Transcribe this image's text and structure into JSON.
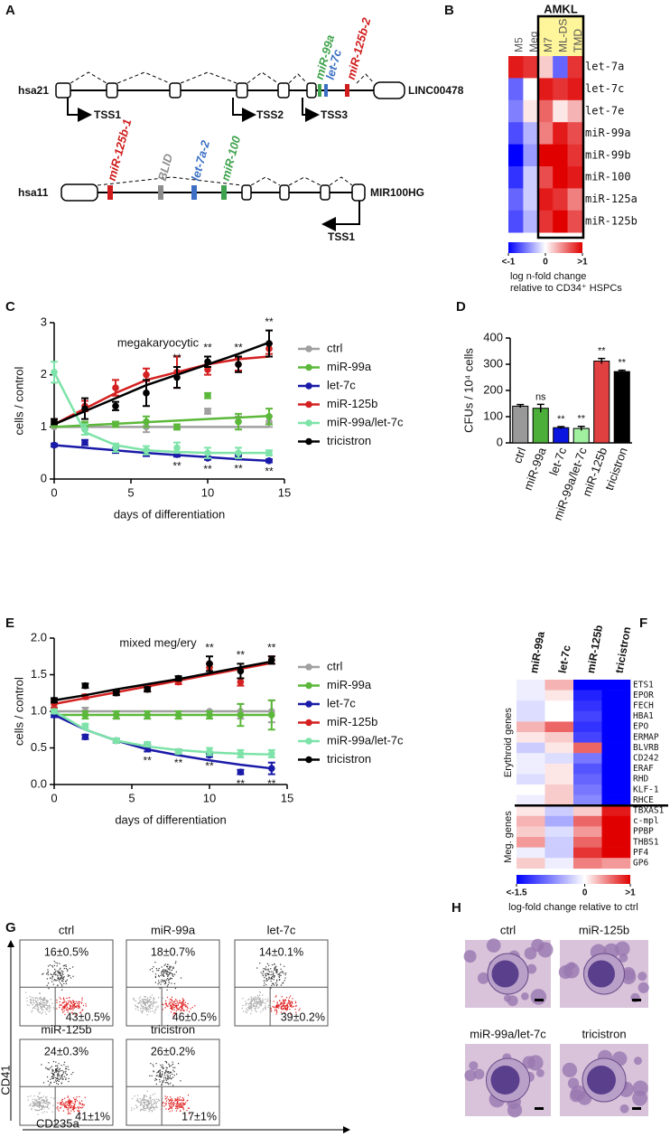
{
  "panel_labels": [
    "A",
    "B",
    "C",
    "D",
    "E",
    "F",
    "G",
    "H"
  ],
  "gene_map": {
    "hsa21": {
      "chrom": "hsa21",
      "gene": "LINC00478",
      "tss": [
        "TSS1",
        "TSS2",
        "TSS3"
      ],
      "mirnas": [
        "miR-99a",
        "let-7c",
        "miR-125b-2"
      ]
    },
    "hsa11": {
      "chrom": "hsa11",
      "gene": "MIR100HG",
      "tss": [
        "TSS1"
      ],
      "mirnas": [
        "miR-125b-1",
        "BLID",
        "let-7a-2",
        "miR-100"
      ]
    }
  },
  "chart_data": [
    {
      "type": "heatmap",
      "group_label": "AMKL",
      "columns": [
        "M5",
        "Meg",
        "M7",
        "ML-DS",
        "TMD"
      ],
      "rows": [
        "let-7a",
        "let-7c",
        "let-7e",
        "miR-99a",
        "miR-99b",
        "miR-100",
        "miR-125a",
        "miR-125b"
      ],
      "values": [
        [
          0.9,
          0.8,
          0.2,
          -0.6,
          0.8
        ],
        [
          -0.6,
          0,
          0.9,
          0.8,
          0.9
        ],
        [
          -0.5,
          0.1,
          0.6,
          0.1,
          0.3
        ],
        [
          -0.7,
          -0.3,
          0.5,
          0.9,
          0.7
        ],
        [
          -1,
          -0.4,
          1,
          1,
          0.8
        ],
        [
          -0.8,
          -0.2,
          0.7,
          1,
          0.9
        ],
        [
          -0.6,
          -0.2,
          0.9,
          0.8,
          0.5
        ],
        [
          -0.7,
          -0.3,
          0.8,
          1,
          0.7
        ]
      ],
      "zlim": [
        -1,
        1
      ],
      "colors": [
        "#0000ff",
        "#ffffff",
        "#e00000"
      ],
      "colorbar_ticks": [
        {
          "value": -1,
          "label": "<-1"
        },
        0,
        {
          "value": 1,
          "label": ">1"
        }
      ],
      "colorbar_label": [
        "log n-fold change",
        "relative to CD34⁺ HSPCs"
      ]
    },
    {
      "type": "line",
      "title": "megakaryocytic",
      "xlabel": "days of differentiation",
      "ylabel": "cells / control",
      "x": [
        0,
        2,
        4,
        6,
        8,
        10,
        12,
        14
      ],
      "xlim": [
        0,
        15
      ],
      "xticks": [
        0,
        5,
        10,
        15
      ],
      "ylim": [
        0,
        3
      ],
      "yticks": [
        0,
        1,
        2,
        3
      ],
      "series": [
        {
          "name": "ctrl",
          "color": "#a0a0a0",
          "values": [
            1,
            1,
            1.05,
            1,
            1,
            1.3,
            1.1,
            1.1
          ],
          "errors": [
            0,
            0.05,
            0.05,
            0.1,
            0.05,
            0.05,
            0.1,
            0.1
          ],
          "fit": [
            1,
            1,
            1,
            1,
            1,
            1,
            1,
            1
          ]
        },
        {
          "name": "miR-99a",
          "color": "#5cb83a",
          "values": [
            1.05,
            1.05,
            1.05,
            1.1,
            1,
            1.6,
            1.1,
            1.2
          ],
          "errors": [
            0.05,
            0.05,
            0.05,
            0.1,
            0.05,
            0.05,
            0.15,
            0.15
          ],
          "fit": [
            1,
            1.03,
            1.06,
            1.09,
            1.12,
            1.15,
            1.18,
            1.21
          ]
        },
        {
          "name": "let-7c",
          "color": "#1a1aa8",
          "values": [
            0.65,
            0.7,
            0.55,
            0.5,
            0.47,
            0.4,
            0.42,
            0.35
          ],
          "errors": [
            0.03,
            0.05,
            0.05,
            0.06,
            0.04,
            0.03,
            0.04,
            0.03
          ],
          "fit": [
            0.65,
            0.6,
            0.55,
            0.5,
            0.46,
            0.42,
            0.38,
            0.35
          ],
          "sig": [
            null,
            null,
            null,
            null,
            "**",
            "**",
            "**",
            "**"
          ]
        },
        {
          "name": "miR-125b",
          "color": "#d42020",
          "values": [
            1.1,
            1.4,
            1.75,
            2,
            2.05,
            2.1,
            2.2,
            2.5
          ],
          "errors": [
            0.05,
            0.1,
            0.15,
            0.12,
            0.3,
            0.1,
            0.12,
            0.1
          ],
          "fit": [
            1.05,
            1.35,
            1.65,
            1.9,
            2.05,
            2.2,
            2.3,
            2.35
          ]
        },
        {
          "name": "miR-99a/let-7c",
          "color": "#7de3a8",
          "values": [
            2.05,
            0.95,
            0.6,
            0.55,
            0.6,
            0.5,
            0.5,
            0.5
          ],
          "errors": [
            0.2,
            0.1,
            0.08,
            0.08,
            0.1,
            0.1,
            0.1,
            0.05
          ],
          "fit": [
            2.05,
            0.9,
            0.65,
            0.55,
            0.52,
            0.5,
            0.5,
            0.5
          ]
        },
        {
          "name": "tricistron",
          "color": "#000000",
          "values": [
            1.1,
            1.35,
            1.4,
            1.65,
            1.95,
            2.25,
            2.2,
            2.6
          ],
          "errors": [
            0.05,
            0.2,
            0.08,
            0.25,
            0.2,
            0.1,
            0.15,
            0.25
          ],
          "fit": [
            1.05,
            1.3,
            1.55,
            1.8,
            2,
            2.2,
            2.4,
            2.62
          ],
          "sig": [
            null,
            null,
            null,
            null,
            "**",
            "**",
            "**",
            "**"
          ]
        }
      ]
    },
    {
      "type": "bar",
      "ylabel": "CFUs / 10⁴ cells",
      "categories": [
        "ctrl",
        "miR-99a",
        "let-7c",
        "miR-99a/let-7c",
        "miR-125b",
        "tricistron"
      ],
      "values": [
        140,
        132,
        58,
        55,
        312,
        272
      ],
      "errors": [
        6,
        15,
        4,
        8,
        10,
        5
      ],
      "colors": [
        "#999999",
        "#4caf3a",
        "#0a16e0",
        "#a0f0a0",
        "#e04040",
        "#000000"
      ],
      "sig_labels": [
        null,
        "ns",
        "**",
        "**",
        "**",
        "**"
      ],
      "ylim": [
        0,
        400
      ],
      "yticks": [
        0,
        100,
        200,
        300,
        400
      ]
    },
    {
      "type": "line",
      "title": "mixed meg/ery",
      "xlabel": "days of differentiation",
      "ylabel": "cells / control",
      "x": [
        0,
        2,
        4,
        6,
        8,
        10,
        12,
        14
      ],
      "xlim": [
        0,
        15
      ],
      "xticks": [
        0,
        5,
        10,
        15
      ],
      "ylim": [
        0,
        2
      ],
      "yticks": [
        {
          "value": 0,
          "label": "0.0"
        },
        0.5,
        {
          "value": 1,
          "label": "1.0"
        },
        1.5,
        {
          "value": 2,
          "label": "2.0"
        }
      ],
      "series": [
        {
          "name": "ctrl",
          "color": "#a0a0a0",
          "values": [
            1,
            1,
            0.95,
            0.95,
            0.95,
            1,
            1,
            1
          ],
          "errors": [
            0,
            0.05,
            0.05,
            0.05,
            0.05,
            0,
            0.1,
            0.15
          ],
          "fit": [
            1,
            1,
            1,
            1,
            1,
            1,
            1,
            1
          ]
        },
        {
          "name": "miR-99a",
          "color": "#5cb83a",
          "values": [
            1,
            0.95,
            0.95,
            0.95,
            0.95,
            0.95,
            0.95,
            0.95
          ],
          "errors": [
            0.05,
            0.05,
            0.05,
            0.05,
            0.05,
            0.05,
            0.15,
            0.2
          ],
          "fit": [
            0.95,
            0.95,
            0.95,
            0.95,
            0.95,
            0.95,
            0.95,
            0.95
          ]
        },
        {
          "name": "let-7c",
          "color": "#1a1aa8",
          "values": [
            0.95,
            0.65,
            0.6,
            0.5,
            0.45,
            0.4,
            0.17,
            0.22
          ],
          "errors": [
            0.03,
            0.03,
            0.03,
            0.05,
            0.03,
            0.02,
            0.03,
            0.08
          ],
          "fit": [
            0.95,
            0.75,
            0.6,
            0.48,
            0.4,
            0.33,
            0.27,
            0.22
          ],
          "sig": [
            null,
            null,
            null,
            "**",
            "**",
            "**",
            "**",
            "**"
          ]
        },
        {
          "name": "miR-125b",
          "color": "#d42020",
          "values": [
            1.1,
            1.2,
            1.25,
            1.3,
            1.4,
            1.6,
            1.4,
            1.7
          ],
          "errors": [
            0.05,
            0.03,
            0.03,
            0.03,
            0.03,
            0.05,
            0.05,
            0.05
          ],
          "fit": [
            1.1,
            1.18,
            1.26,
            1.34,
            1.42,
            1.5,
            1.58,
            1.66
          ]
        },
        {
          "name": "miR-99a/let-7c",
          "color": "#7de3a8",
          "values": [
            1,
            0.8,
            0.6,
            0.55,
            0.45,
            0.45,
            0.42,
            0.42
          ],
          "errors": [
            0.03,
            0.03,
            0.03,
            0.03,
            0.03,
            0.05,
            0.05,
            0.05
          ],
          "fit": [
            1,
            0.75,
            0.6,
            0.52,
            0.47,
            0.44,
            0.42,
            0.41
          ]
        },
        {
          "name": "tricistron",
          "color": "#000000",
          "values": [
            1.15,
            1.35,
            1.25,
            1.3,
            1.45,
            1.65,
            1.55,
            1.7
          ],
          "errors": [
            0.03,
            0.03,
            0.03,
            0.03,
            0.03,
            0.1,
            0.1,
            0.05
          ],
          "fit": [
            1.15,
            1.22,
            1.3,
            1.37,
            1.44,
            1.52,
            1.6,
            1.68
          ],
          "sig": [
            null,
            null,
            null,
            null,
            null,
            "**",
            "**",
            "**"
          ]
        }
      ]
    },
    {
      "type": "heatmap",
      "columns": [
        "miR-99a",
        "let-7c",
        "miR-125b",
        "tricistron"
      ],
      "row_groups": [
        {
          "label": "Erythroid genes",
          "rows": [
            "ETS1",
            "EPOR",
            "FECH",
            "HBA1",
            "EPO",
            "ERMAP",
            "BLVRB",
            "CD242",
            "ERAF",
            "RHD",
            "KLF-1",
            "RHCE"
          ],
          "values": [
            [
              -0.1,
              0.3,
              -1.5,
              -1.5
            ],
            [
              -0.1,
              0.1,
              -1.3,
              -1.5
            ],
            [
              -0.2,
              0,
              -1.2,
              -1.5
            ],
            [
              -0.2,
              0,
              -1.1,
              -1.5
            ],
            [
              0.3,
              0.6,
              -1.2,
              -1.5
            ],
            [
              0.1,
              0.2,
              -1.1,
              -1.5
            ],
            [
              -0.3,
              0.1,
              0.6,
              -1.5
            ],
            [
              -0.1,
              -0.2,
              -0.8,
              -1.5
            ],
            [
              -0.1,
              0.1,
              -1,
              -1.5
            ],
            [
              -0.2,
              0.1,
              -0.9,
              -1.5
            ],
            [
              0,
              0.2,
              -0.8,
              -1.5
            ],
            [
              -0.1,
              0.2,
              -0.7,
              -1.5
            ]
          ]
        },
        {
          "label": "Meg. genes",
          "rows": [
            "TBXAS1",
            "c-mpl",
            "PPBP",
            "THBS1",
            "PF4",
            "GP6"
          ],
          "values": [
            [
              0.1,
              -0.3,
              0.2,
              0.9
            ],
            [
              0.3,
              -0.5,
              0.6,
              1
            ],
            [
              0.2,
              -0.2,
              0.4,
              1
            ],
            [
              0.4,
              -0.3,
              0.6,
              1
            ],
            [
              -0.1,
              -0.3,
              0.8,
              1
            ],
            [
              0.2,
              -0.1,
              0.5,
              0.4
            ]
          ]
        }
      ],
      "zlim": [
        -1.5,
        1
      ],
      "colors": [
        "#0000ff",
        "#ffffff",
        "#e00000"
      ],
      "colorbar_ticks": [
        {
          "value": -1.5,
          "label": "<-1.5"
        },
        0,
        {
          "value": 1,
          "label": ">1"
        }
      ],
      "colorbar_label": [
        "log-fold change relative to ctrl"
      ]
    }
  ],
  "flow": {
    "y_axis": "CD41",
    "x_axis": "CD235a",
    "plots": [
      {
        "label": "ctrl",
        "upper": "16±0.5%",
        "lower": "43±0.5%"
      },
      {
        "label": "miR-99a",
        "upper": "18±0.7%",
        "lower": "46±0.5%"
      },
      {
        "label": "let-7c",
        "upper": "14±0.1%",
        "lower": "39±0.2%"
      },
      {
        "label": "miR-125b",
        "upper": "24±0.3%",
        "lower": "41±1%"
      },
      {
        "label": "tricistron",
        "upper": "26±0.2%",
        "lower": "17±1%"
      }
    ]
  },
  "micrographs": {
    "labels": [
      "ctrl",
      "miR-125b",
      "miR-99a/let-7c",
      "tricistron"
    ]
  }
}
